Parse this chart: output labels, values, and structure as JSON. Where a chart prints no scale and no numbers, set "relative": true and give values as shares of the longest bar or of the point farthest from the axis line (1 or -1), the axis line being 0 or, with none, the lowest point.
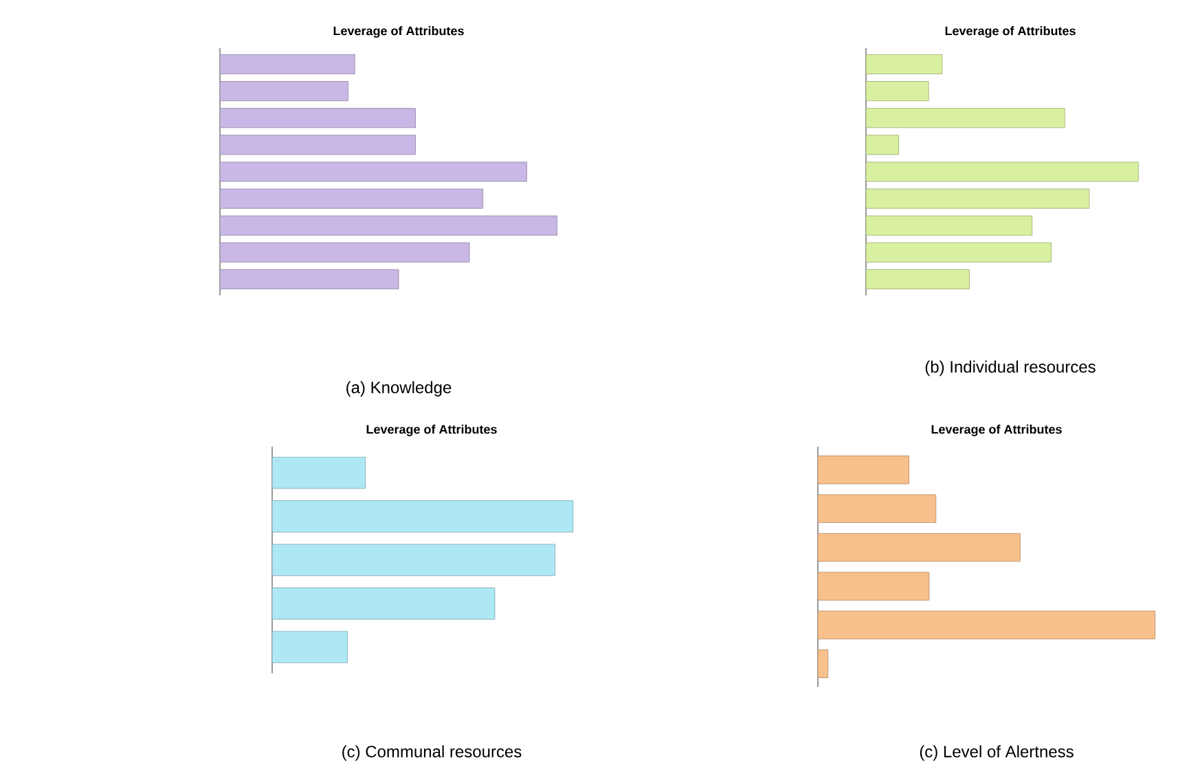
{
  "chart_data": [
    {
      "type": "bar",
      "orientation": "horizontal",
      "relative": true,
      "title": "Leverage of Attributes",
      "categories": [
        null,
        null,
        null,
        null,
        null,
        null,
        null,
        null,
        null
      ],
      "values": [
        0.4,
        0.38,
        0.58,
        0.58,
        0.91,
        0.78,
        1,
        0.74,
        0.53
      ],
      "color": "#c9b8e6",
      "annotations": [
        "(a) Knowledge"
      ]
    },
    {
      "type": "bar",
      "orientation": "horizontal",
      "relative": true,
      "title": "Leverage of Attributes",
      "categories": [
        null,
        null,
        null,
        null,
        null,
        null,
        null,
        null,
        null
      ],
      "values": [
        0.28,
        0.23,
        0.73,
        0.12,
        1,
        0.82,
        0.61,
        0.68,
        0.38
      ],
      "color": "#d9f0a0",
      "annotations": [
        "(b) Individual resources"
      ]
    },
    {
      "type": "bar",
      "orientation": "horizontal",
      "relative": true,
      "title": "Leverage of Attributes",
      "categories": [
        null,
        null,
        null,
        null,
        null
      ],
      "values": [
        0.31,
        1,
        0.94,
        0.74,
        0.25
      ],
      "color": "#aee8f5",
      "annotations": [
        "(c) Communal resources"
      ]
    },
    {
      "type": "bar",
      "orientation": "horizontal",
      "relative": true,
      "title": "Leverage of Attributes",
      "categories": [
        null,
        null,
        null,
        null,
        null,
        null
      ],
      "values": [
        0.27,
        0.35,
        0.6,
        0.33,
        1,
        0.03
      ],
      "color": "#f8c08c",
      "annotations": [
        "(c) Level of Alertness"
      ]
    }
  ]
}
